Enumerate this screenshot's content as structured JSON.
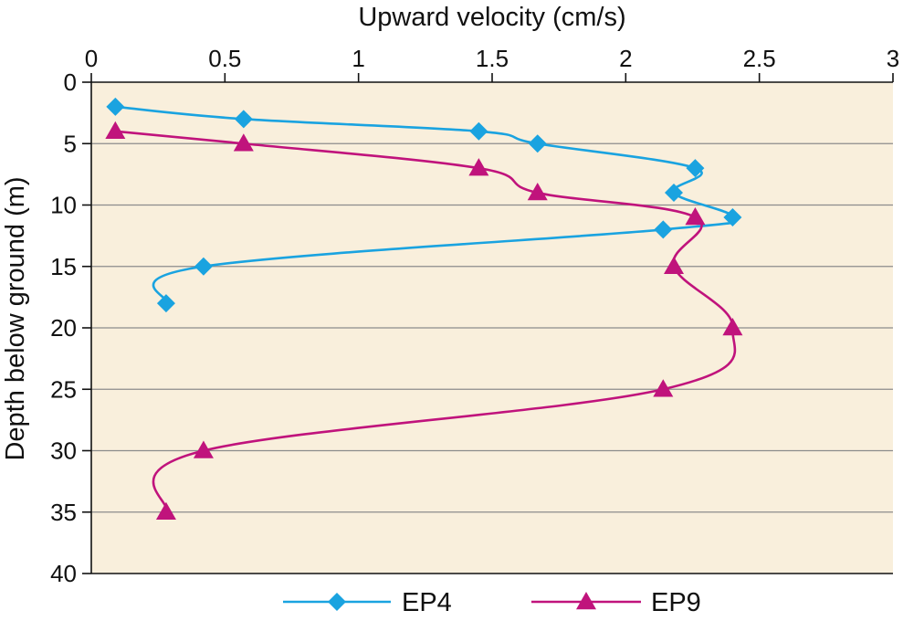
{
  "chart_data": {
    "type": "line",
    "xlabel": "Upward velocity (cm/s)",
    "ylabel": "Depth below ground (m)",
    "xlim": [
      0,
      3
    ],
    "ylim": [
      0,
      40
    ],
    "y_inverted": true,
    "x_axis_position": "top",
    "x_ticks": [
      "0",
      "0.5",
      "1",
      "1.5",
      "2",
      "2.5",
      "3"
    ],
    "y_ticks": [
      "0",
      "5",
      "10",
      "15",
      "20",
      "25",
      "30",
      "35",
      "40"
    ],
    "grid": "horizontal",
    "plot_background": "#f9efdc",
    "legend_position": "bottom",
    "series": [
      {
        "name": "EP4",
        "color": "#1aa3e0",
        "marker": "diamond",
        "points": [
          {
            "x": 0.09,
            "y": 2
          },
          {
            "x": 0.57,
            "y": 3
          },
          {
            "x": 1.45,
            "y": 4
          },
          {
            "x": 1.67,
            "y": 5
          },
          {
            "x": 2.26,
            "y": 7
          },
          {
            "x": 2.18,
            "y": 9
          },
          {
            "x": 2.4,
            "y": 11
          },
          {
            "x": 2.14,
            "y": 12
          },
          {
            "x": 0.42,
            "y": 15
          },
          {
            "x": 0.28,
            "y": 18
          }
        ]
      },
      {
        "name": "EP9",
        "color": "#c0137c",
        "marker": "triangle",
        "points": [
          {
            "x": 0.09,
            "y": 4
          },
          {
            "x": 0.57,
            "y": 5
          },
          {
            "x": 1.45,
            "y": 7
          },
          {
            "x": 1.67,
            "y": 9
          },
          {
            "x": 2.26,
            "y": 11
          },
          {
            "x": 2.18,
            "y": 15
          },
          {
            "x": 2.4,
            "y": 20
          },
          {
            "x": 2.14,
            "y": 25
          },
          {
            "x": 0.42,
            "y": 30
          },
          {
            "x": 0.28,
            "y": 35
          }
        ]
      }
    ]
  }
}
